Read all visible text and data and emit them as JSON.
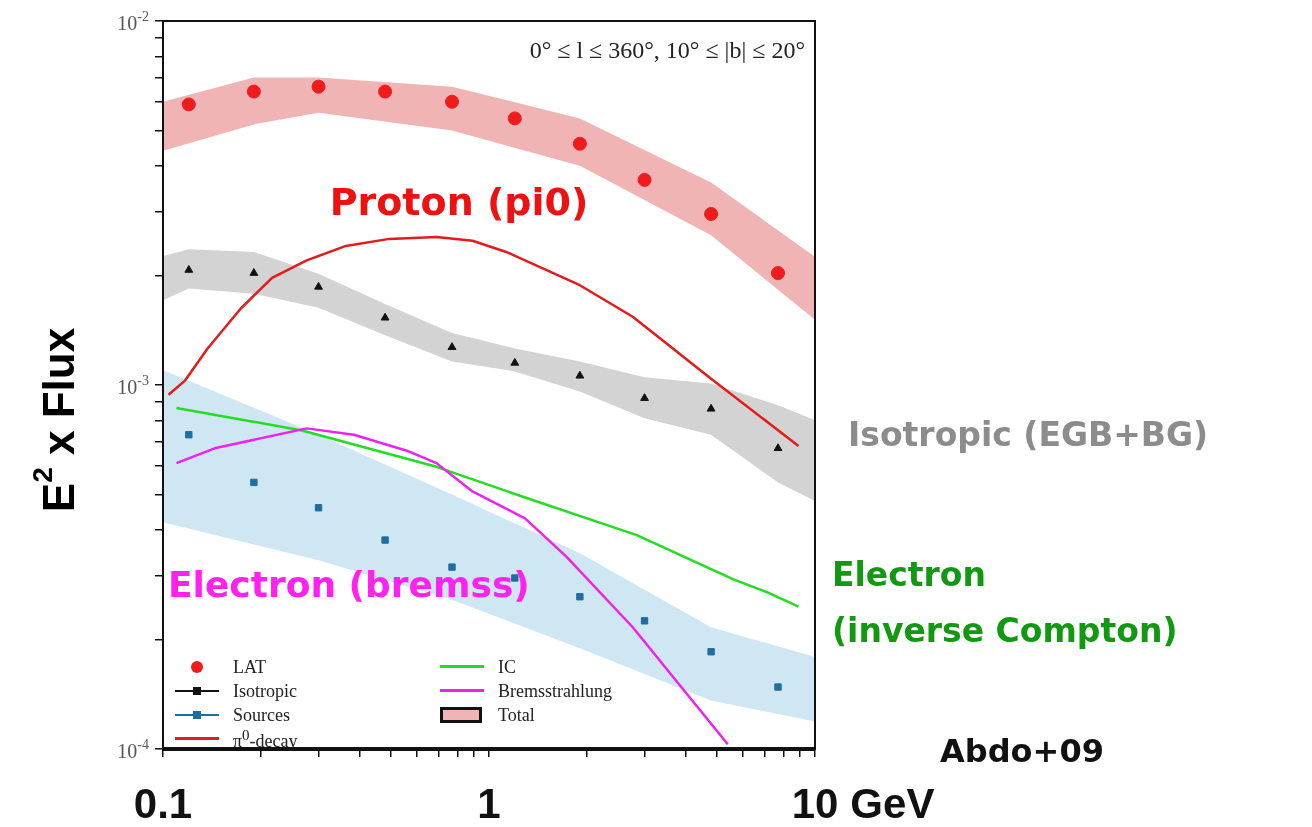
{
  "chart_data": {
    "type": "line",
    "ylabel": "E$^{2}$ x Flux",
    "log": "xy",
    "grid": false,
    "legend": "bottom left",
    "xlim": [
      0.1,
      10
    ],
    "ylim": [
      0.0001,
      0.01
    ],
    "xticks": [
      {
        "value": 0.1,
        "label": "0.1"
      },
      {
        "value": 0.2,
        "label": null
      },
      {
        "value": 0.3,
        "label": null
      },
      {
        "value": 0.4,
        "label": null
      },
      {
        "value": 0.5,
        "label": null
      },
      {
        "value": 0.6,
        "label": null
      },
      {
        "value": 0.7,
        "label": null
      },
      {
        "value": 0.8,
        "label": null
      },
      {
        "value": 0.9,
        "label": null
      },
      {
        "value": 1,
        "label": "1"
      },
      {
        "value": 2,
        "label": null
      },
      {
        "value": 3,
        "label": null
      },
      {
        "value": 4,
        "label": null
      },
      {
        "value": 5,
        "label": null
      },
      {
        "value": 6,
        "label": null
      },
      {
        "value": 7,
        "label": null
      },
      {
        "value": 8,
        "label": null
      },
      {
        "value": 9,
        "label": null
      },
      10
    ],
    "xlabel": "GeV",
    "yticks": [
      {
        "value": 0.0001,
        "label": "10$^{-4}$"
      },
      {
        "value": 0.0002,
        "label": null
      },
      {
        "value": 0.0003,
        "label": null
      },
      {
        "value": 0.0004,
        "label": null
      },
      {
        "value": 0.0005,
        "label": null
      },
      {
        "value": 0.0006,
        "label": null
      },
      {
        "value": 0.0007,
        "label": null
      },
      {
        "value": 0.0008,
        "label": null
      },
      {
        "value": 0.0009,
        "label": null
      },
      {
        "value": 0.001,
        "label": "10$^{-3}$"
      },
      {
        "value": 0.002,
        "label": null
      },
      {
        "value": 0.003,
        "label": null
      },
      {
        "value": 0.004,
        "label": null
      },
      {
        "value": 0.005,
        "label": null
      },
      {
        "value": 0.006,
        "label": null
      },
      {
        "value": 0.007,
        "label": null
      },
      {
        "value": 0.008,
        "label": null
      },
      {
        "value": 0.009,
        "label": null
      },
      {
        "value": 0.01,
        "label": "10$^{-2}$"
      }
    ],
    "series": [
      {
        "name": "Total",
        "type": "area",
        "color": "#f0b4b4",
        "x": [
          0.1,
          0.19,
          0.3,
          0.77,
          1.9,
          4.8,
          10
        ],
        "values": [
          null,
          null,
          null,
          null,
          null,
          null,
          null
        ],
        "lower": [
          0.0044,
          0.0052,
          0.0056,
          0.005,
          0.004,
          0.00258,
          0.00151
        ],
        "upper": [
          0.006,
          0.007,
          0.007,
          0.0066,
          0.0054,
          0.0036,
          0.00225
        ]
      },
      {
        "type": "area",
        "color": "#d3d3d3",
        "x": [
          0.1,
          0.12,
          0.19,
          0.3,
          0.48,
          0.77,
          1.2,
          1.9,
          3.0,
          4.8,
          7.7,
          10
        ],
        "values": [
          null,
          null,
          null,
          null,
          null,
          null,
          null,
          null,
          null,
          null,
          null,
          null
        ],
        "lower": [
          0.00171,
          0.00184,
          0.00178,
          0.00163,
          0.00137,
          0.00116,
          0.00109,
          0.00096,
          0.00081,
          0.00073,
          0.00054,
          0.00048
        ],
        "upper": [
          0.00226,
          0.00236,
          0.00232,
          0.00202,
          0.00167,
          0.00139,
          0.00126,
          0.00116,
          0.00105,
          0.00101,
          0.00088,
          0.0008
        ]
      },
      {
        "type": "area",
        "color": "#cfe6f3",
        "x": [
          0.1,
          0.3,
          0.77,
          1.9,
          4.8,
          10
        ],
        "values": [
          null,
          null,
          null,
          null,
          null,
          null
        ],
        "lower": [
          0.00042,
          0.00033,
          0.000257,
          0.000189,
          0.000136,
          0.000119
        ],
        "upper": [
          0.0011,
          0.00073,
          0.0005,
          0.000345,
          0.000216,
          0.000179
        ]
      },
      {
        "name": "LAT",
        "type": "scatter",
        "marker": "circle",
        "color": "#ee1c1c",
        "x": [
          0.12,
          0.19,
          0.3,
          0.48,
          0.77,
          1.2,
          1.9,
          3.0,
          4.8,
          7.7
        ],
        "values": [
          0.0059,
          0.0064,
          0.0066,
          0.0064,
          0.006,
          0.0054,
          0.0046,
          0.00366,
          0.00295,
          0.00203
        ]
      },
      {
        "name": "Isotropic",
        "type": "scatter",
        "marker": "triangle",
        "color": "#111111",
        "x": [
          0.12,
          0.19,
          0.3,
          0.48,
          0.77,
          1.2,
          1.9,
          3.0,
          4.8,
          7.7
        ],
        "values": [
          0.00207,
          0.00203,
          0.00186,
          0.00153,
          0.00127,
          0.00115,
          0.00106,
          0.00092,
          0.00086,
          0.00067
        ]
      },
      {
        "name": "Sources",
        "type": "scatter",
        "marker": "square",
        "color": "#1f6e9e",
        "x": [
          0.12,
          0.19,
          0.3,
          0.48,
          0.77,
          1.2,
          1.9,
          3.0,
          4.8,
          7.7
        ],
        "values": [
          0.00073,
          0.00054,
          0.00046,
          0.000375,
          0.000316,
          0.000295,
          0.000262,
          0.000225,
          0.000185,
          0.000148
        ]
      },
      {
        "name": "π$^{0}$-decay",
        "type": "line",
        "color": "#e21b1b",
        "x": [
          0.104,
          0.117,
          0.137,
          0.173,
          0.216,
          0.276,
          0.364,
          0.494,
          0.69,
          0.89,
          1.13,
          1.9,
          2.76,
          4.8,
          8.9
        ],
        "values": [
          0.00094,
          0.00103,
          0.00126,
          0.00162,
          0.00197,
          0.0022,
          0.00241,
          0.00252,
          0.00255,
          0.00249,
          0.00232,
          0.00188,
          0.00154,
          0.00104,
          0.00068
        ]
      },
      {
        "name": "IC",
        "type": "line",
        "color": "#22dd22",
        "x": [
          0.11,
          0.267,
          0.69,
          1.36,
          2.84,
          5.6,
          7.1,
          8.9
        ],
        "values": [
          0.000865,
          0.00075,
          0.000596,
          0.000483,
          0.000387,
          0.000293,
          0.00027,
          0.000246
        ]
      },
      {
        "name": "Bremsstrahlung",
        "type": "line",
        "color": "#ee22ee",
        "x": [
          0.11,
          0.144,
          0.276,
          0.385,
          0.56,
          0.69,
          0.89,
          1.29,
          1.73,
          2.76,
          5.4
        ],
        "values": [
          0.00061,
          0.00067,
          0.00076,
          0.00073,
          0.00066,
          0.00061,
          0.00051,
          0.00043,
          0.000337,
          0.000216,
          0.000103
        ]
      }
    ],
    "annotations": [
      "0° ≤ l ≤ 360°, 10° ≤ |b| ≤ 20°",
      "Proton (pi0)",
      "Isotropic (EGB+BG)",
      "Electron (bremss)",
      "Electron\n(inverse Compton)",
      "Abdo+09"
    ]
  }
}
